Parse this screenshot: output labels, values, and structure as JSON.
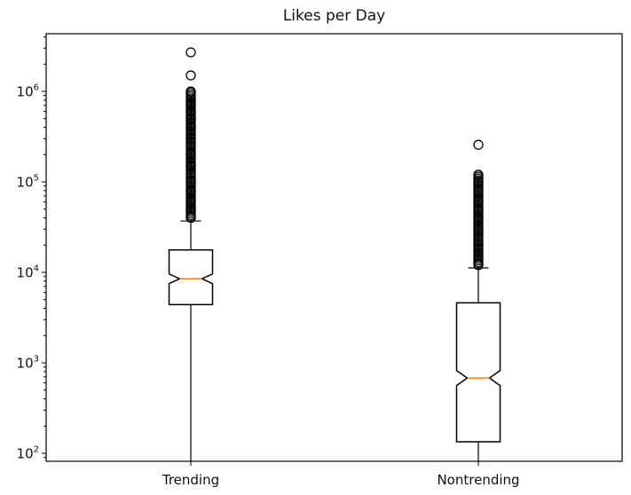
{
  "chart_data": {
    "type": "boxplot",
    "title": "Likes per Day",
    "xlabel": "",
    "ylabel": "",
    "yscale": "log",
    "ylim": [
      80,
      4200000
    ],
    "yticks": [
      {
        "exp": "2",
        "value": 100
      },
      {
        "exp": "3",
        "value": 1000
      },
      {
        "exp": "4",
        "value": 10000
      },
      {
        "exp": "5",
        "value": 100000
      },
      {
        "exp": "6",
        "value": 1000000
      }
    ],
    "notched": true,
    "median_color": "#ff7f0e",
    "categories": [
      "Trending",
      "Nontrending"
    ],
    "series": [
      {
        "name": "Trending",
        "whisker_low": 80,
        "q1": 4400,
        "median": 8500,
        "q3": 17700,
        "whisker_high": 37000,
        "notch_low": 7500,
        "notch_high": 9600,
        "outliers_sample": [
          40000,
          50000,
          60000,
          80000,
          100000,
          150000,
          200000,
          300000,
          400000,
          500000,
          600000,
          700000,
          800000,
          1000000,
          1500000,
          2700000
        ]
      },
      {
        "name": "Nontrending",
        "whisker_low": 80,
        "q1": 134,
        "median": 680,
        "q3": 4600,
        "whisker_high": 11200,
        "notch_low": 560,
        "notch_high": 820,
        "outliers_sample": [
          12000,
          15000,
          20000,
          30000,
          40000,
          50000,
          60000,
          80000,
          100000,
          120000,
          257000
        ]
      }
    ],
    "grid": false,
    "legend": null
  }
}
